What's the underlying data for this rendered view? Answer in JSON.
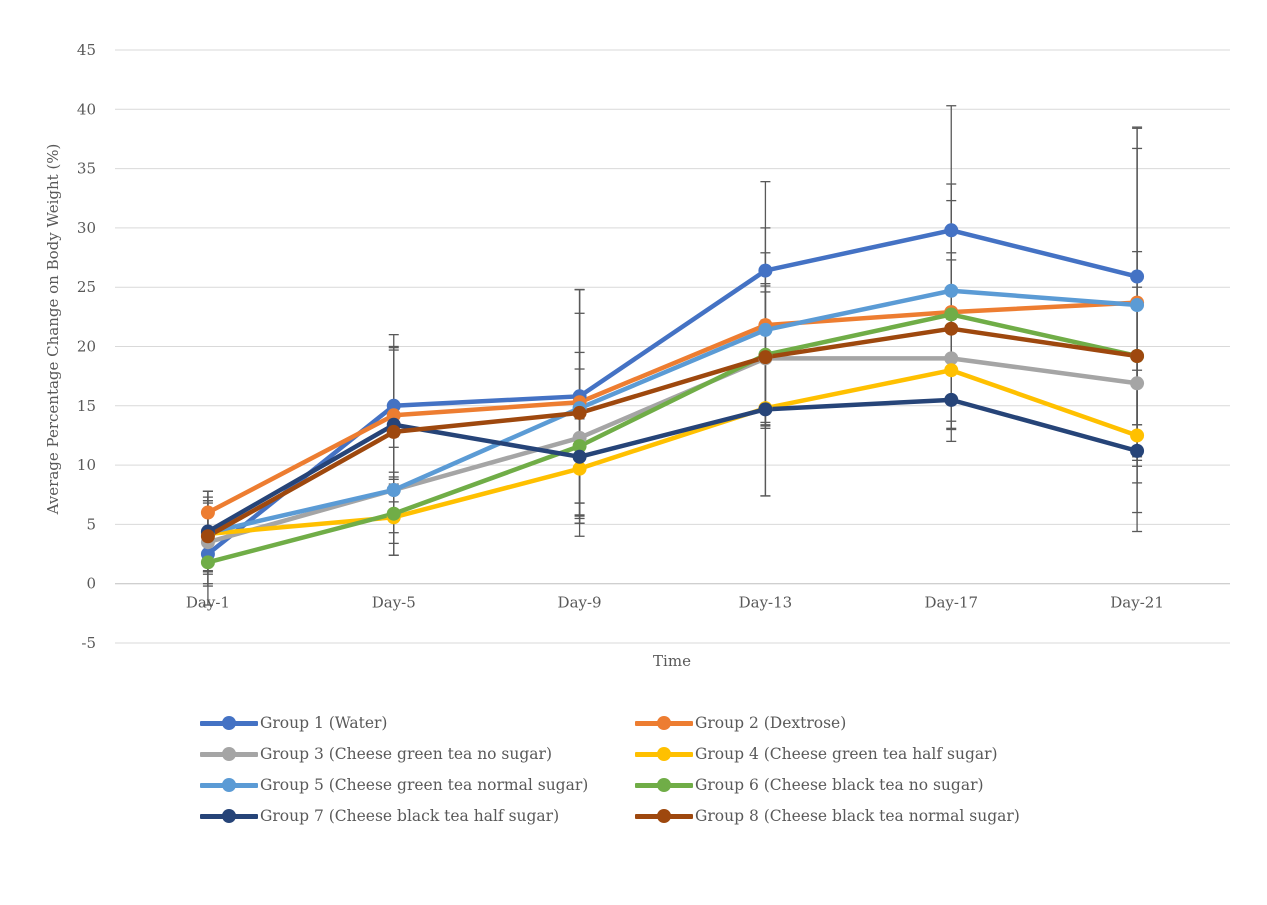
{
  "chart_data": {
    "type": "line",
    "title": "",
    "xlabel": "Time",
    "ylabel": "Average Percentage Change on Body Weight (%)",
    "categories": [
      "Day-1",
      "Day-5",
      "Day-9",
      "Day-13",
      "Day-17",
      "Day-21"
    ],
    "ylim": [
      -5,
      45
    ],
    "yticks": [
      -5,
      0,
      5,
      10,
      15,
      20,
      25,
      30,
      35,
      40,
      45
    ],
    "grid": true,
    "legend_position": "bottom",
    "series": [
      {
        "name": "Group 1 (Water)",
        "color": "#4472C4",
        "values": [
          2.5,
          15.0,
          15.8,
          26.4,
          29.8,
          25.9
        ],
        "error": [
          4.3,
          6.0,
          9.0,
          7.5,
          10.5,
          12.5
        ]
      },
      {
        "name": "Group 2 (Dextrose)",
        "color": "#ED7D31",
        "values": [
          6.0,
          14.2,
          15.3,
          21.8,
          22.9,
          23.7
        ],
        "error": [
          1.8,
          5.8,
          9.5,
          8.2,
          5.0,
          13.0
        ]
      },
      {
        "name": "Group 3 (Cheese green tea no sugar)",
        "color": "#A5A5A5",
        "values": [
          3.5,
          7.9,
          12.3,
          19.0,
          19.0,
          16.9
        ],
        "error": [
          3.5,
          4.5,
          7.2,
          5.6,
          6.0,
          7.0
        ]
      },
      {
        "name": "Group 4 (Cheese green tea half sugar)",
        "color": "#FFC000",
        "values": [
          4.2,
          5.6,
          9.7,
          14.8,
          18.0,
          12.5
        ],
        "error": [
          3.1,
          3.2,
          4.2,
          7.4,
          4.3,
          6.5
        ]
      },
      {
        "name": "Group 5 (Cheese green tea normal sugar)",
        "color": "#5B9BD5",
        "values": [
          4.3,
          7.9,
          14.8,
          21.4,
          24.7,
          23.5
        ],
        "error": [
          3.5,
          3.6,
          8.0,
          6.5,
          9.0,
          15.0
        ]
      },
      {
        "name": "Group 6 (Cheese black tea no sugar)",
        "color": "#70AD47",
        "values": [
          1.8,
          5.9,
          11.6,
          19.3,
          22.7,
          19.2
        ],
        "error": [
          2.0,
          3.5,
          6.5,
          6.0,
          9.6,
          8.8
        ]
      },
      {
        "name": "Group 7 (Cheese black tea half sugar)",
        "color": "#264478",
        "values": [
          4.4,
          13.4,
          10.7,
          14.7,
          15.5,
          11.2
        ],
        "error": [
          3.4,
          6.5,
          5.0,
          7.3,
          3.5,
          6.8
        ]
      },
      {
        "name": "Group 8 (Cheese black tea normal sugar)",
        "color": "#9E480E",
        "values": [
          4.0,
          12.8,
          14.4,
          19.1,
          21.5,
          19.2
        ],
        "error": [
          3.0,
          6.9,
          10.4,
          6.0,
          5.8,
          5.8
        ]
      }
    ]
  }
}
